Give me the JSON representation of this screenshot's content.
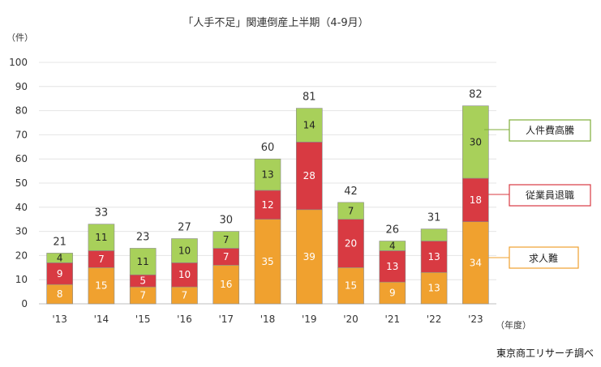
{
  "chart_data": {
    "type": "bar",
    "stacked": true,
    "title": "「人手不足」関連倒産上半期（4-9月）",
    "y_unit": "（件）",
    "x_unit": "（年度）",
    "source": "東京商工リサーチ調べ",
    "categories": [
      "'13",
      "'14",
      "'15",
      "'16",
      "'17",
      "'18",
      "'19",
      "'20",
      "'21",
      "'22",
      "'23"
    ],
    "ylim": [
      0,
      100
    ],
    "yticks": [
      0,
      10,
      20,
      30,
      40,
      50,
      60,
      70,
      80,
      90,
      100
    ],
    "grid": true,
    "legend_placement": "right",
    "series": [
      {
        "name": "求人難",
        "color": "#f0a12f",
        "values": [
          8,
          15,
          7,
          7,
          16,
          35,
          39,
          15,
          9,
          13,
          34
        ]
      },
      {
        "name": "従業員退職",
        "color": "#d83a42",
        "values": [
          9,
          7,
          5,
          10,
          7,
          12,
          28,
          20,
          13,
          13,
          18
        ]
      },
      {
        "name": "人件費高騰",
        "color": "#a8d05a",
        "values": [
          4,
          11,
          11,
          10,
          7,
          13,
          14,
          7,
          4,
          5,
          30
        ]
      }
    ],
    "segment_labels": [
      [
        "8",
        "9",
        "4"
      ],
      [
        "15",
        "7",
        "11"
      ],
      [
        "7",
        "5",
        "11"
      ],
      [
        "7",
        "10",
        "10"
      ],
      [
        "16",
        "7",
        "7"
      ],
      [
        "35",
        "12",
        "13"
      ],
      [
        "39",
        "28",
        "14"
      ],
      [
        "15",
        "20",
        "7"
      ],
      [
        "9",
        "13",
        "4"
      ],
      [
        "13",
        "13",
        ""
      ],
      [
        "34",
        "18",
        "30"
      ]
    ],
    "totals": [
      21,
      33,
      23,
      27,
      30,
      60,
      81,
      42,
      26,
      31,
      82
    ],
    "legend": [
      {
        "name": "人件費高騰",
        "color": "#a8d05a"
      },
      {
        "name": "従業員退職",
        "color": "#d83a42"
      },
      {
        "name": "求人難",
        "color": "#f0a12f"
      }
    ]
  }
}
